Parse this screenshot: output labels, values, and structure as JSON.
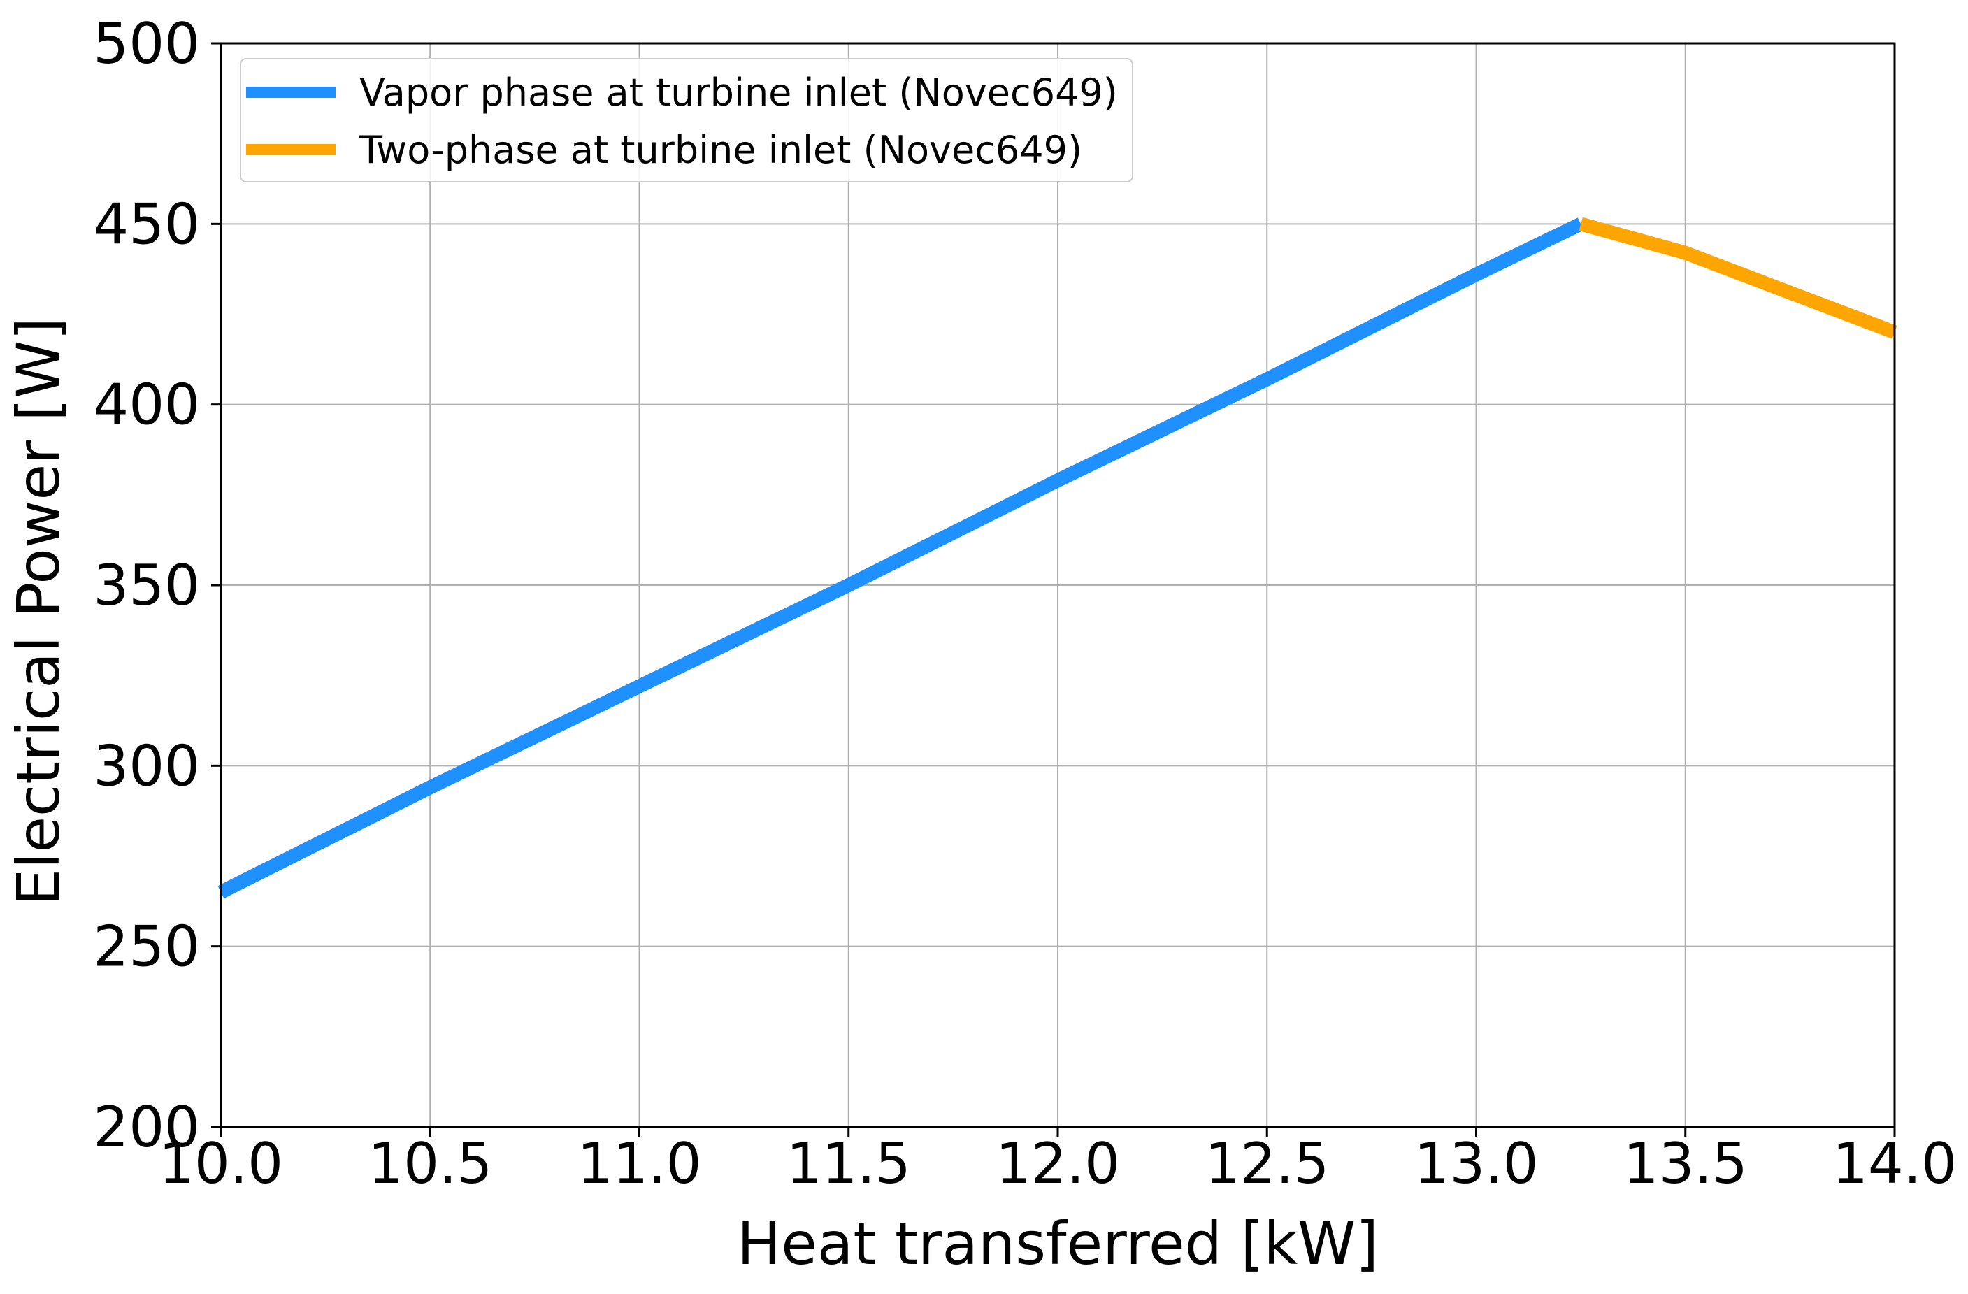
{
  "chart_data": {
    "type": "line",
    "title": "",
    "xlabel": "Heat transferred [kW]",
    "ylabel": "Electrical Power [W]",
    "xlim": [
      10.0,
      14.0
    ],
    "ylim": [
      200,
      500
    ],
    "xticks": [
      "10.0",
      "10.5",
      "11.0",
      "11.5",
      "12.0",
      "12.5",
      "13.0",
      "13.5",
      "14.0"
    ],
    "yticks": [
      "200",
      "250",
      "300",
      "350",
      "400",
      "450",
      "500"
    ],
    "grid": true,
    "legend_position": "top-left",
    "series": [
      {
        "name": "Vapor phase at turbine inlet (Novec649)",
        "color": "#1e90ff",
        "x": [
          10.0,
          10.5,
          11.0,
          11.5,
          12.0,
          12.5,
          13.0,
          13.25
        ],
        "y": [
          265,
          294,
          322,
          350,
          379,
          407,
          436,
          450
        ]
      },
      {
        "name": "Two-phase at turbine inlet (Novec649)",
        "color": "#ffa500",
        "x": [
          13.25,
          13.5,
          14.0
        ],
        "y": [
          450,
          442,
          420
        ]
      }
    ]
  }
}
